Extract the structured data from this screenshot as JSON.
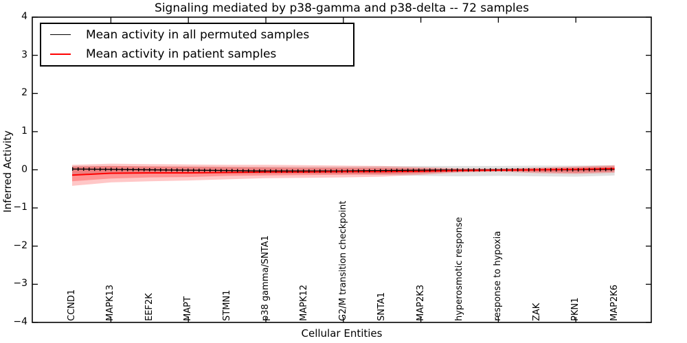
{
  "title": "Signaling mediated by p38-gamma and p38-delta -- 72 samples",
  "chart_data": {
    "type": "line",
    "title": "Signaling mediated by p38-gamma and p38-delta -- 72 samples",
    "xlabel": "Cellular Entities",
    "ylabel": "Inferred Activity",
    "ylim": [
      -4,
      4
    ],
    "yticks": [
      -4,
      -3,
      -2,
      -1,
      0,
      1,
      2,
      3,
      4
    ],
    "grid": false,
    "legend_position": "upper left",
    "categories": [
      "CCND1",
      "MAPK13",
      "EEF2K",
      "MAPT",
      "STMN1",
      "p38 gamma/SNTA1",
      "MAPK12",
      "G2/M transition checkpoint",
      "SNTA1",
      "MAP2K3",
      "hyperosmotic response",
      "response to hypoxia",
      "ZAK",
      "PKN1",
      "MAP2K6"
    ],
    "legend": [
      {
        "label": "Mean activity in all permuted samples",
        "color": "#000000"
      },
      {
        "label": "Mean activity in patient samples",
        "color": "#ff0000"
      }
    ],
    "series": [
      {
        "name": "Mean activity in all permuted samples",
        "color": "#000000",
        "values": [
          0.02,
          0.01,
          0.0,
          -0.01,
          -0.02,
          -0.03,
          -0.03,
          -0.03,
          -0.02,
          -0.01,
          -0.005,
          0.0,
          0.0,
          0.0,
          0.01
        ]
      },
      {
        "name": "Mean activity in patient samples",
        "color": "#ff0000",
        "values": [
          -0.14,
          -0.09,
          -0.08,
          -0.08,
          -0.07,
          -0.06,
          -0.06,
          -0.05,
          -0.05,
          -0.04,
          -0.02,
          -0.01,
          0.0,
          0.01,
          0.03
        ]
      }
    ],
    "bands": [
      {
        "name": "permuted-spread",
        "color": "#000000",
        "opacity": 0.12,
        "upper": [
          0.1,
          0.1,
          0.09,
          0.09,
          0.08,
          0.08,
          0.08,
          0.08,
          0.09,
          0.1,
          0.1,
          0.1,
          0.11,
          0.11,
          0.12
        ],
        "lower": [
          -0.12,
          -0.11,
          -0.1,
          -0.1,
          -0.1,
          -0.1,
          -0.1,
          -0.11,
          -0.13,
          -0.16,
          -0.17,
          -0.16,
          -0.17,
          -0.18,
          -0.15
        ]
      },
      {
        "name": "patient-spread-outer",
        "color": "#ff0000",
        "opacity": 0.22,
        "upper": [
          0.13,
          0.16,
          0.15,
          0.14,
          0.13,
          0.13,
          0.12,
          0.11,
          0.1,
          0.07,
          0.04,
          0.03,
          0.06,
          0.09,
          0.12
        ],
        "lower": [
          -0.42,
          -0.33,
          -0.3,
          -0.28,
          -0.25,
          -0.22,
          -0.21,
          -0.2,
          -0.18,
          -0.13,
          -0.07,
          -0.05,
          -0.09,
          -0.11,
          -0.08
        ]
      },
      {
        "name": "patient-spread-inner",
        "color": "#ff0000",
        "opacity": 0.26,
        "upper": [
          0.08,
          0.1,
          0.09,
          0.08,
          0.07,
          0.06,
          0.05,
          0.05,
          0.05,
          0.04,
          0.02,
          0.02,
          0.04,
          0.06,
          0.09
        ],
        "lower": [
          -0.3,
          -0.23,
          -0.2,
          -0.19,
          -0.16,
          -0.15,
          -0.14,
          -0.13,
          -0.12,
          -0.09,
          -0.05,
          -0.03,
          -0.06,
          -0.08,
          -0.05
        ]
      }
    ],
    "colors": {
      "background": "#ffffff",
      "axes": "#000000"
    }
  }
}
